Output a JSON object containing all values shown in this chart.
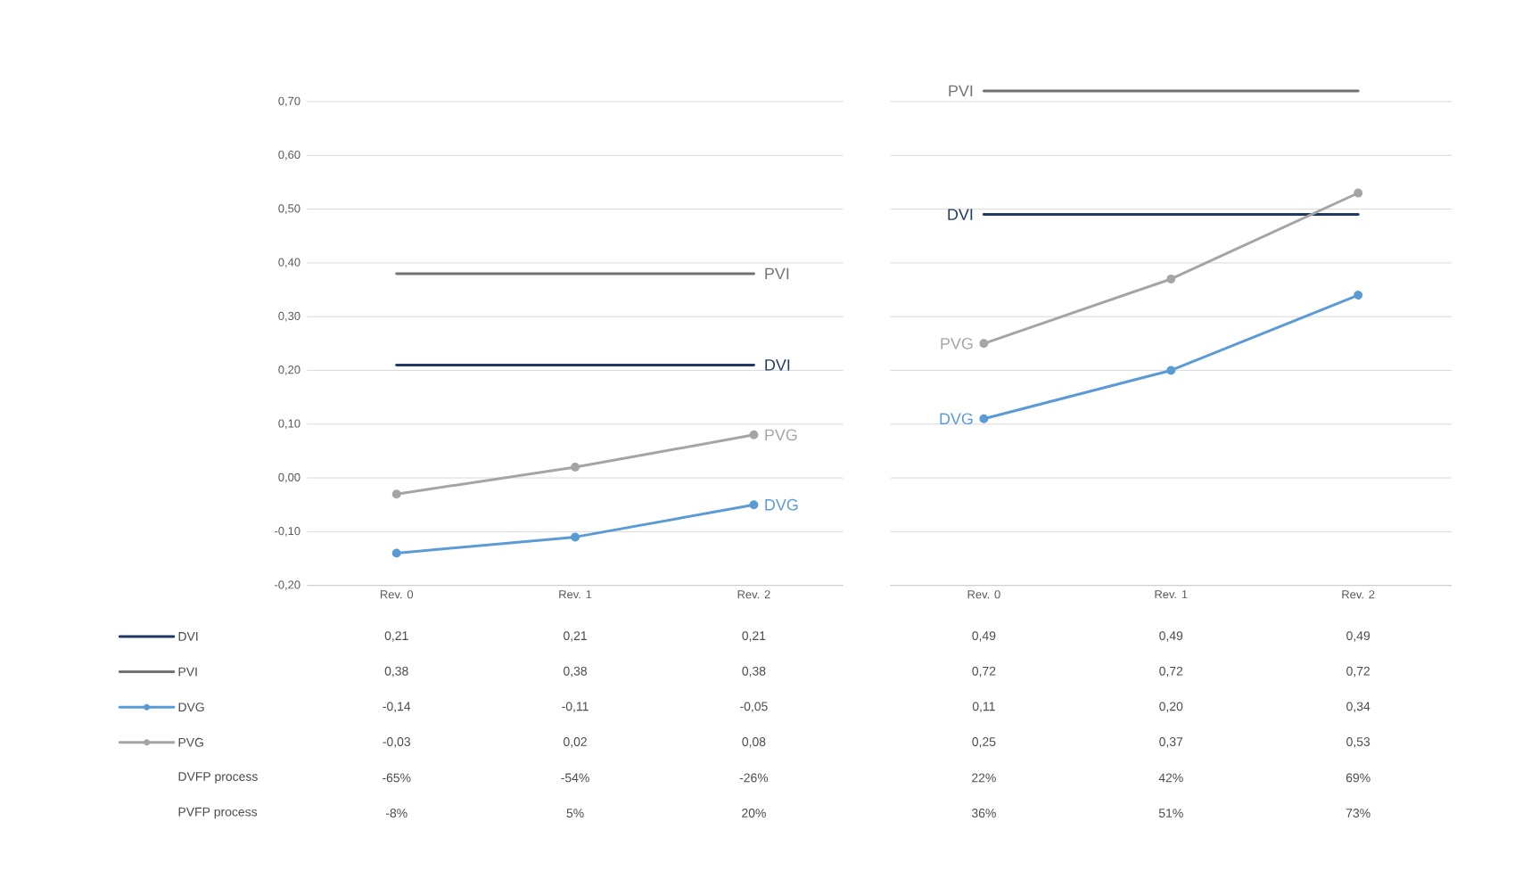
{
  "chart_data": [
    {
      "type": "line",
      "categories": [
        "Rev. 0",
        "Rev. 1",
        "Rev. 2"
      ],
      "series": [
        {
          "name": "DVI",
          "color": "#203864",
          "values": [
            0.21,
            0.21,
            0.21
          ],
          "value_labels": [
            "0,21",
            "0,21",
            "0,21"
          ],
          "marker": "none"
        },
        {
          "name": "PVI",
          "color": "#767171",
          "values": [
            0.38,
            0.38,
            0.38
          ],
          "value_labels": [
            "0,38",
            "0,38",
            "0,38"
          ],
          "marker": "none"
        },
        {
          "name": "DVG",
          "color": "#5b9bd5",
          "values": [
            -0.14,
            -0.11,
            -0.05
          ],
          "value_labels": [
            "-0,14",
            "-0,11",
            "-0,05"
          ],
          "marker": "circle"
        },
        {
          "name": "PVG",
          "color": "#a5a5a5",
          "values": [
            -0.03,
            0.02,
            0.08
          ],
          "value_labels": [
            "-0,03",
            "0,02",
            "0,08"
          ],
          "marker": "circle"
        }
      ],
      "ylim": [
        -0.2,
        0.7
      ],
      "yticks": [
        {
          "value": -0.2,
          "label": "-0,20"
        },
        {
          "value": -0.1,
          "label": "-0,10"
        },
        {
          "value": 0,
          "label": "0,00"
        },
        {
          "value": 0.1,
          "label": "0,10"
        },
        {
          "value": 0.2,
          "label": "0,20"
        },
        {
          "value": 0.3,
          "label": "0,30"
        },
        {
          "value": 0.4,
          "label": "0,40"
        },
        {
          "value": 0.5,
          "label": "0,50"
        },
        {
          "value": 0.6,
          "label": "0,60"
        },
        {
          "value": 0.7,
          "label": "0,70"
        }
      ],
      "grid": "y",
      "legend": "bottom left",
      "annotations": [
        "DVFP process",
        "-65%",
        "-54%",
        "-26%",
        "PVFP process",
        "-8%",
        "5%",
        "20%"
      ]
    },
    {
      "type": "line",
      "categories": [
        "Rev. 0",
        "Rev. 1",
        "Rev. 2"
      ],
      "series": [
        {
          "name": "DVI",
          "color": "#203864",
          "values": [
            0.49,
            0.49,
            0.49
          ],
          "value_labels": [
            "0,49",
            "0,49",
            "0,49"
          ],
          "marker": "none"
        },
        {
          "name": "PVI",
          "color": "#767171",
          "values": [
            0.72,
            0.72,
            0.72
          ],
          "value_labels": [
            "0,72",
            "0,72",
            "0,72"
          ],
          "marker": "none"
        },
        {
          "name": "DVG",
          "color": "#5b9bd5",
          "values": [
            0.11,
            0.2,
            0.34
          ],
          "value_labels": [
            "0,11",
            "0,20",
            "0,34"
          ],
          "marker": "circle"
        },
        {
          "name": "PVG",
          "color": "#a5a5a5",
          "values": [
            0.25,
            0.37,
            0.53
          ],
          "value_labels": [
            "0,25",
            "0,37",
            "0,53"
          ],
          "marker": "circle"
        }
      ],
      "grid": "y",
      "tick_labels": "x",
      "annotations": [
        "22%",
        "42%",
        "69%",
        "36%",
        "51%",
        "73%"
      ]
    }
  ]
}
